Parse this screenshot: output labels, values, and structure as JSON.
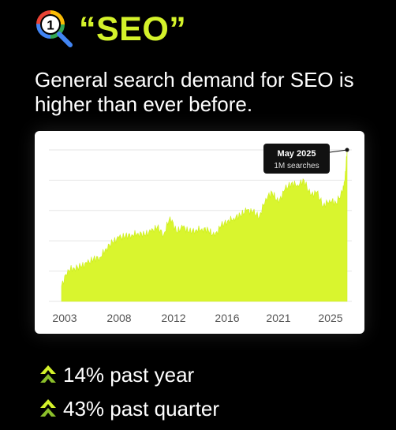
{
  "header": {
    "logo_number": "1",
    "title": "“SEO”"
  },
  "subtitle": "General search demand for SEO is higher than ever before.",
  "colors": {
    "accent": "#d4f22a",
    "background": "#000000",
    "card": "#ffffff",
    "area": "#d9f52e"
  },
  "chart_data": {
    "type": "area",
    "title": "",
    "xlabel": "",
    "ylabel": "",
    "x_ticks": [
      "2003",
      "2008",
      "2012",
      "2016",
      "2021",
      "2025"
    ],
    "ylim": [
      0,
      1.0
    ],
    "grid": true,
    "annotation": {
      "x": "2025-05",
      "y": 1.0,
      "label": "May 2025",
      "sublabel": "1M searches"
    },
    "series": [
      {
        "x": [
          2003.0,
          2003.5,
          2004.0,
          2004.5,
          2005.0,
          2005.5,
          2006.0,
          2006.5,
          2007.0,
          2007.5,
          2008.0,
          2008.5,
          2009.0,
          2009.5,
          2010.0,
          2010.5,
          2011.0,
          2011.5,
          2012.0,
          2012.5,
          2013.0,
          2013.5,
          2014.0,
          2014.5,
          2015.0,
          2015.5,
          2016.0,
          2016.5,
          2017.0,
          2017.5,
          2018.0,
          2018.5,
          2019.0,
          2019.5,
          2020.0,
          2020.5,
          2021.0,
          2021.5,
          2022.0,
          2022.5,
          2023.0,
          2023.5,
          2024.0,
          2024.5,
          2025.0,
          2025.2,
          2025.37
        ],
        "values": [
          0.1,
          0.21,
          0.22,
          0.23,
          0.25,
          0.28,
          0.29,
          0.35,
          0.39,
          0.42,
          0.43,
          0.44,
          0.45,
          0.44,
          0.46,
          0.49,
          0.44,
          0.56,
          0.46,
          0.49,
          0.46,
          0.47,
          0.48,
          0.47,
          0.43,
          0.5,
          0.53,
          0.55,
          0.57,
          0.6,
          0.59,
          0.56,
          0.68,
          0.72,
          0.65,
          0.74,
          0.78,
          0.77,
          0.8,
          0.7,
          0.72,
          0.63,
          0.67,
          0.65,
          0.72,
          0.8,
          1.0
        ]
      }
    ]
  },
  "stats": [
    {
      "text": "14% past year"
    },
    {
      "text": "43% past quarter"
    }
  ]
}
